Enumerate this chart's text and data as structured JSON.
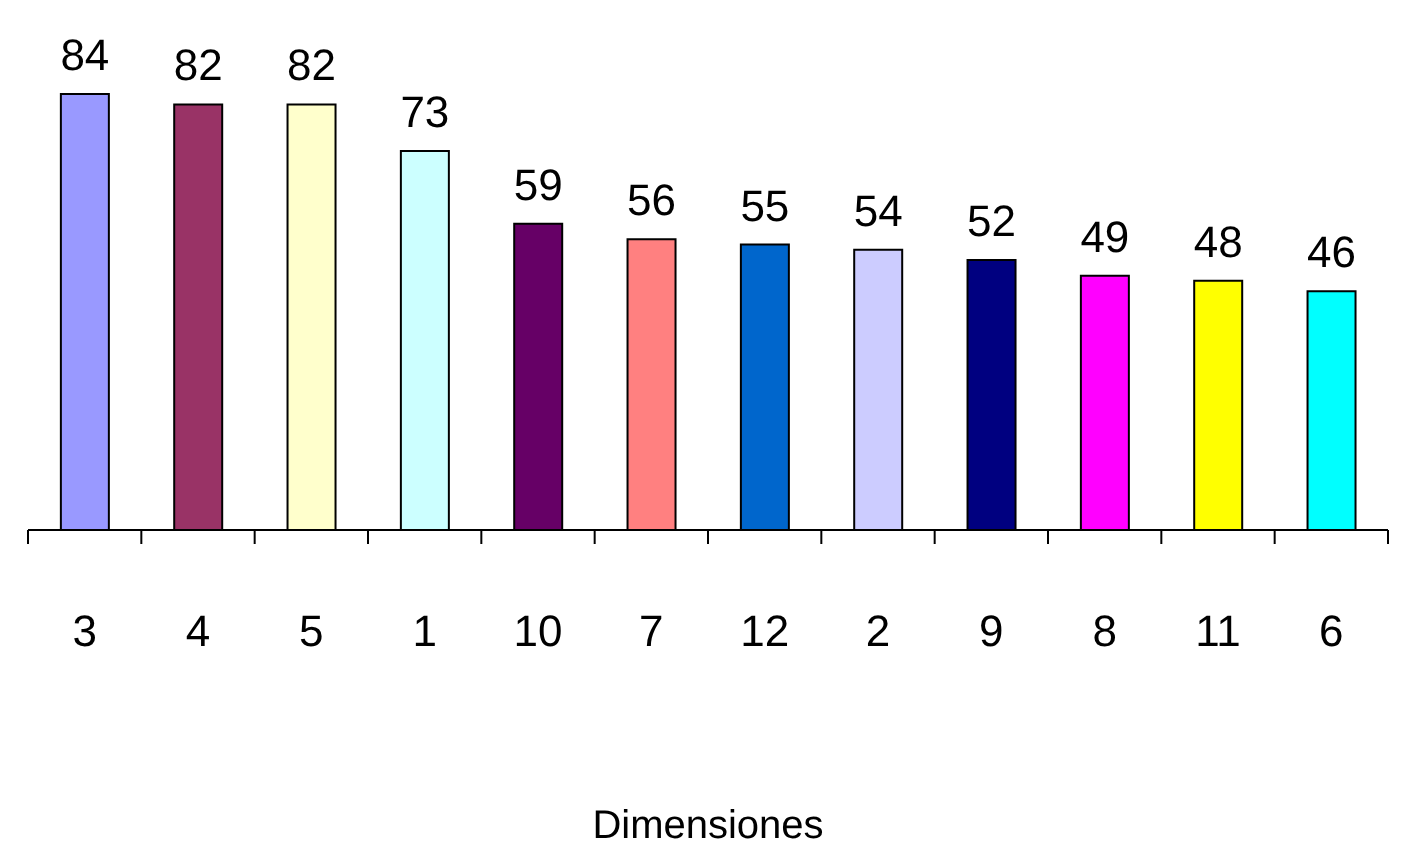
{
  "chart_data": {
    "type": "bar",
    "xlabel": "Dimensiones",
    "categories": [
      "3",
      "4",
      "5",
      "1",
      "10",
      "7",
      "12",
      "2",
      "9",
      "8",
      "11",
      "6"
    ],
    "values": [
      84,
      82,
      82,
      73,
      59,
      56,
      55,
      54,
      52,
      49,
      48,
      46
    ],
    "colors": [
      "#9999ff",
      "#993366",
      "#ffffcc",
      "#ccffff",
      "#660066",
      "#ff8080",
      "#0066cc",
      "#ccccff",
      "#000080",
      "#ff00ff",
      "#ffff00",
      "#00ffff"
    ],
    "data_labels": true,
    "grid": false,
    "legend": false
  }
}
